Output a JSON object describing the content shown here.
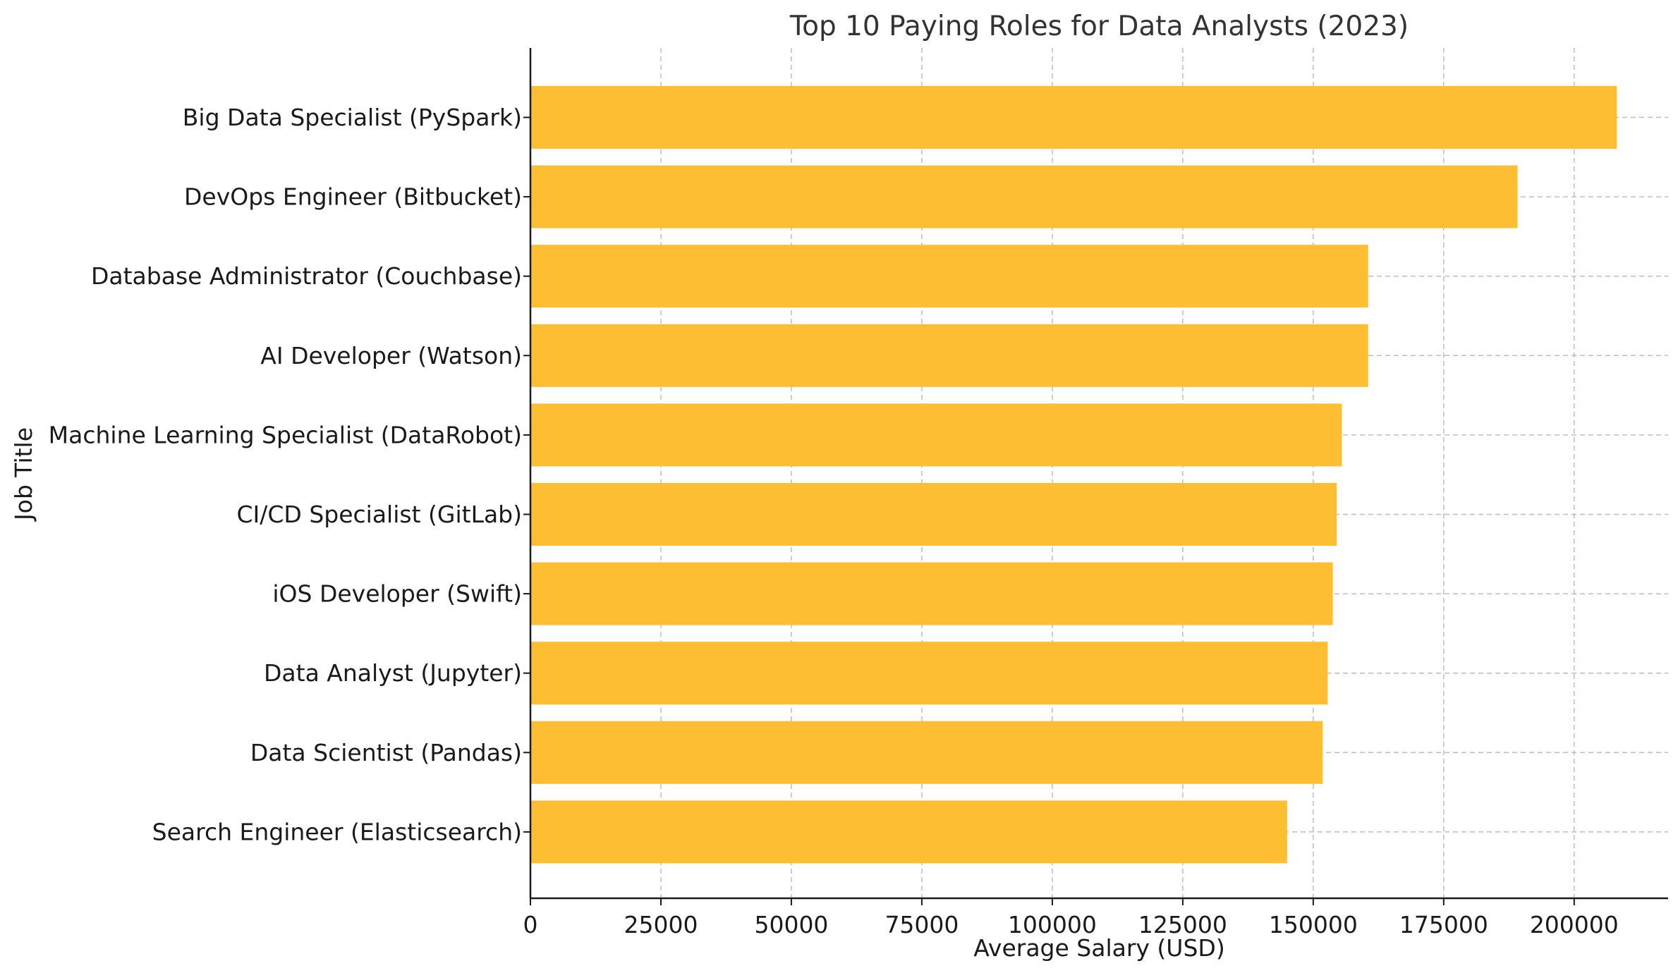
{
  "chart_data": {
    "type": "bar",
    "orientation": "horizontal",
    "title": "Top 10 Paying Roles for Data Analysts (2023)",
    "xlabel": "Average Salary (USD)",
    "ylabel": "Job Title",
    "categories": [
      "Big Data Specialist (PySpark)",
      "DevOps Engineer (Bitbucket)",
      "Database Administrator (Couchbase)",
      "AI Developer (Watson)",
      "Machine Learning Specialist (DataRobot)",
      "CI/CD Specialist (GitLab)",
      "iOS Developer (Swift)",
      "Data Analyst (Jupyter)",
      "Data Scientist (Pandas)",
      "Search Engineer (Elasticsearch)"
    ],
    "values": [
      208172,
      189155,
      160515,
      160515,
      155486,
      154500,
      153750,
      152777,
      151821,
      145000
    ],
    "xlim": [
      0,
      218000
    ],
    "xticks": [
      "0",
      "25000",
      "50000",
      "75000",
      "100000",
      "125000",
      "150000",
      "175000",
      "200000"
    ],
    "grid": true,
    "bar_color": "#FDBE33",
    "legend": "none"
  }
}
